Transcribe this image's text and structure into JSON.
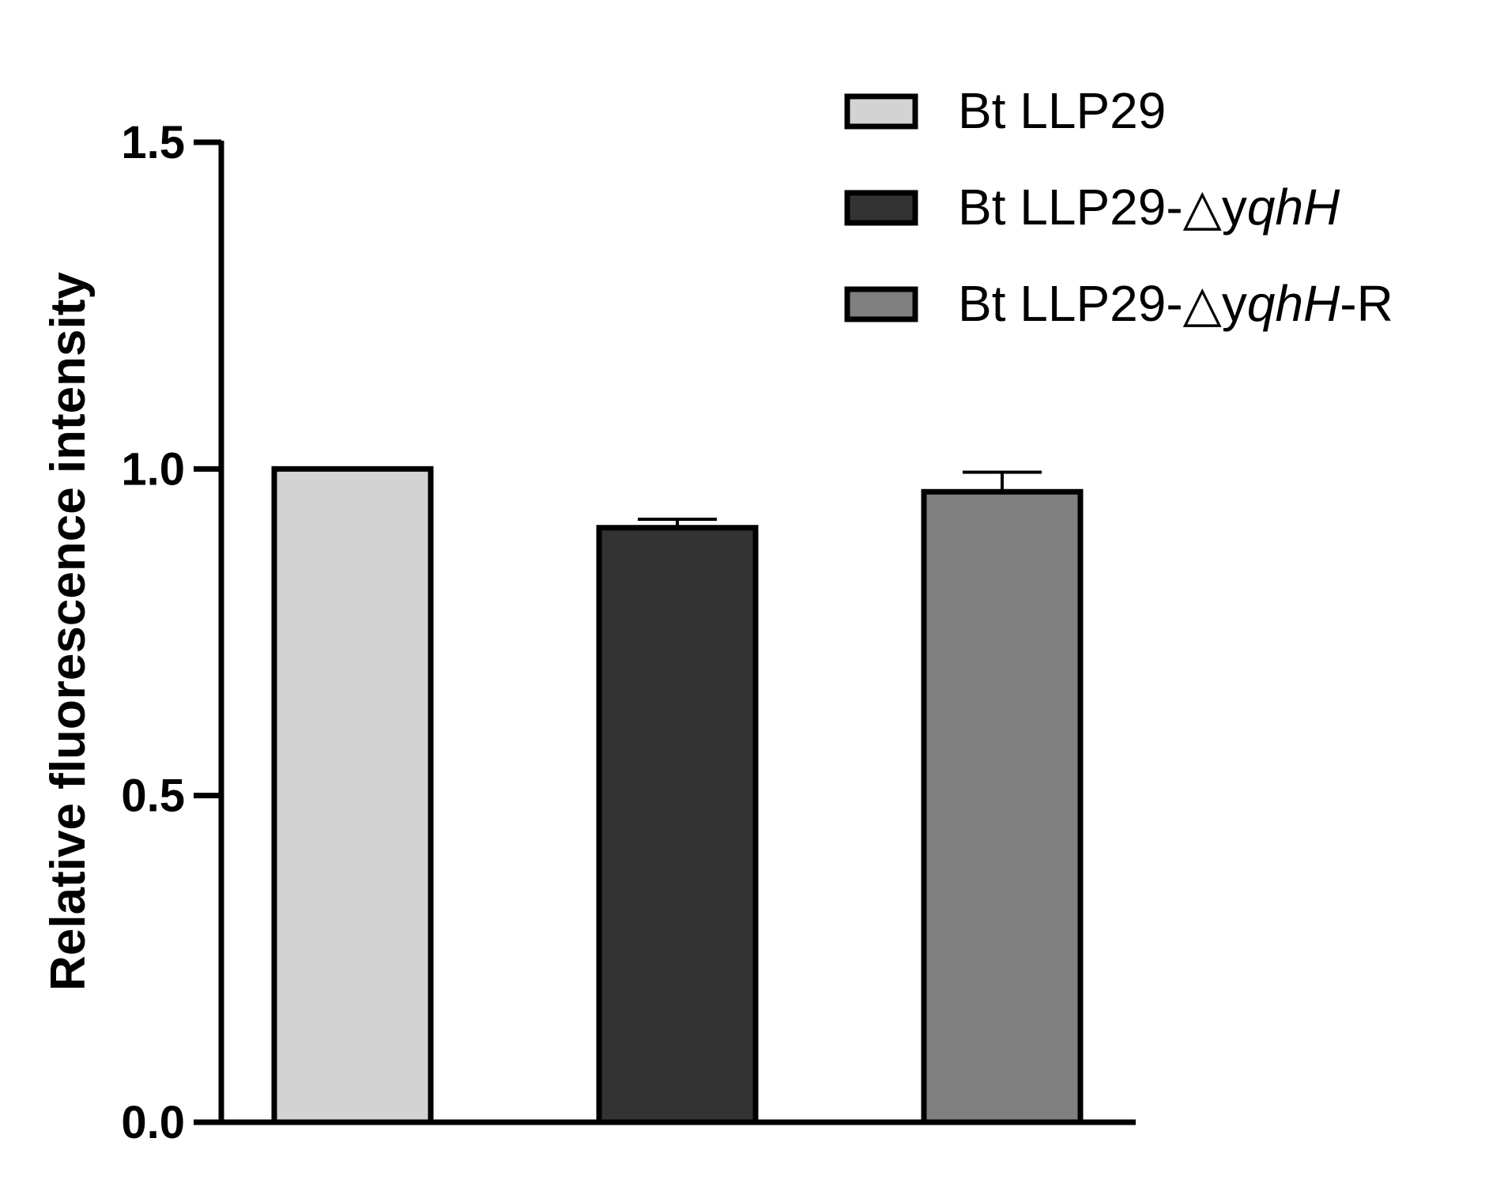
{
  "chart_data": {
    "type": "bar",
    "categories": [
      "Bt LLP29",
      "Bt LLP29-△yqhH",
      "Bt LLP29-△yqhH-R"
    ],
    "values": [
      1.0,
      0.91,
      0.965
    ],
    "error": [
      0,
      0.013,
      0.03
    ],
    "colors": [
      "#d3d3d3",
      "#333333",
      "#808080"
    ],
    "ylabel": "Relative fluorescence intensity",
    "xlabel": "",
    "ylim": [
      0,
      1.5
    ],
    "yticks": [
      "0.0",
      "0.5",
      "1.0",
      "1.5"
    ],
    "grid": false,
    "legend_position": "top-right",
    "legend": [
      {
        "plain": "Bt LLP29",
        "italic": "",
        "suffix": ""
      },
      {
        "plain": "Bt LLP29-△y",
        "italic": "qhH",
        "suffix": ""
      },
      {
        "plain": "Bt LLP29-△y",
        "italic": "qhH",
        "suffix": "-R"
      }
    ]
  }
}
